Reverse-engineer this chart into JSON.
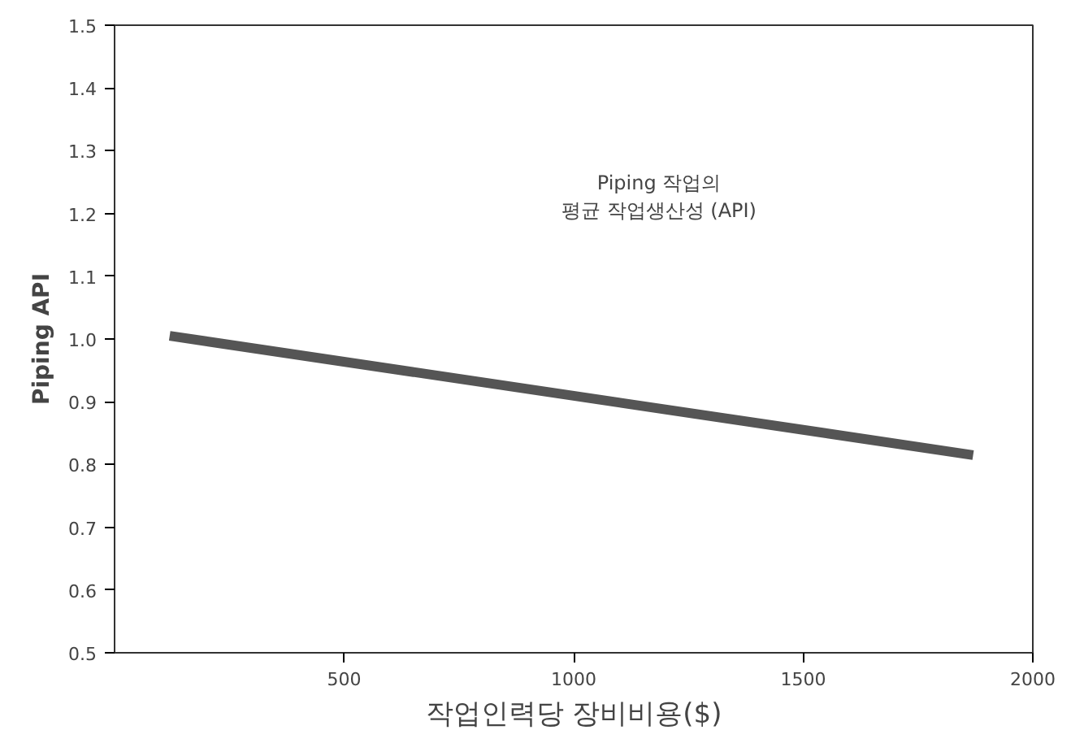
{
  "chart_data": {
    "type": "line",
    "xlabel": "작업인력당 장비비용($)",
    "ylabel": "Piping API",
    "x": [
      120,
      1870
    ],
    "series": [
      {
        "color": "#555555",
        "values": [
          1.005,
          0.815
        ]
      }
    ],
    "xlim": [
      0,
      2000
    ],
    "xticks": [
      500,
      1000,
      1500,
      2000
    ],
    "ylim": [
      0.5,
      1.5
    ],
    "yticks": [
      0.5,
      0.6,
      0.7,
      0.8,
      0.9,
      {
        "value": 1.0,
        "label": "1.0"
      },
      1.1,
      1.2,
      1.3,
      1.4,
      1.5
    ],
    "annotations": [
      "Piping 작업의\n평균 작업생산성 (API)"
    ],
    "grid": false,
    "marker": "none",
    "line_style": "solid"
  }
}
